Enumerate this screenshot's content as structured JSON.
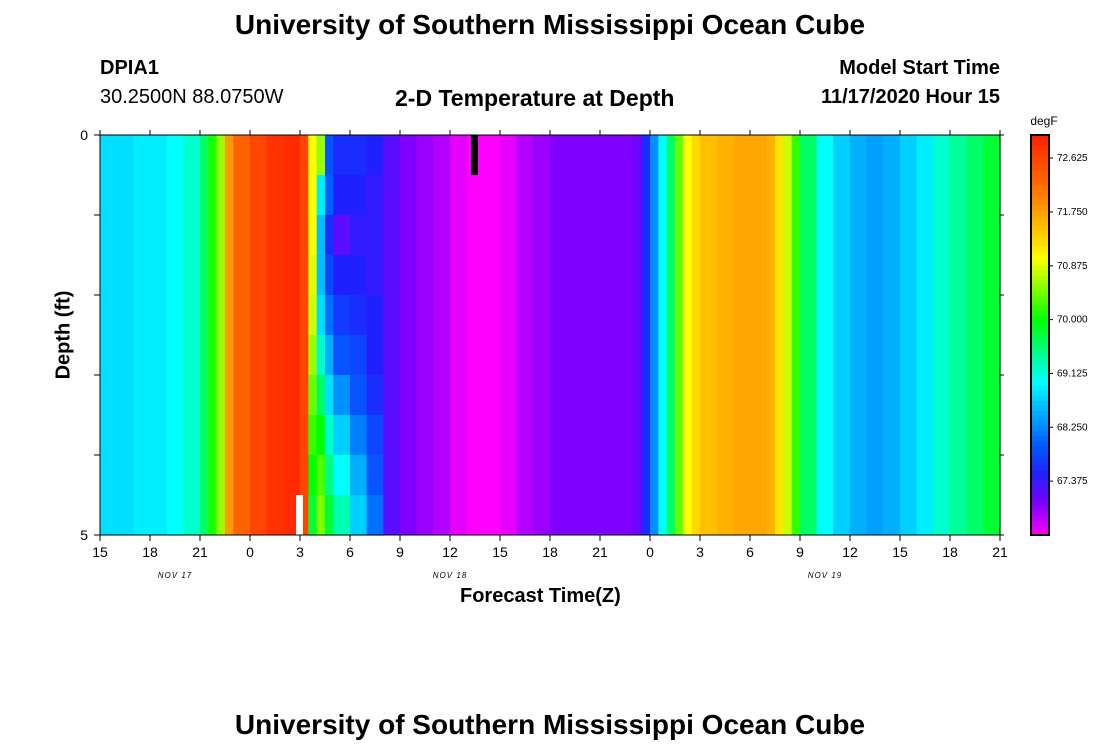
{
  "page": {
    "top_title": "University of Southern Mississippi Ocean Cube",
    "bottom_title": "University of Southern Mississippi Ocean Cube",
    "station_id": "DPIA1",
    "station_coords": "30.2500N 88.0750W",
    "model_start_label": "Model Start Time",
    "model_start_time": "11/17/2020 Hour 15"
  },
  "chart_data": {
    "type": "heatmap",
    "title": "2-D Temperature at Depth",
    "xlabel": "Forecast Time(Z)",
    "ylabel": "Depth (ft)",
    "y_ticks": [
      "0",
      "5"
    ],
    "ylim": [
      0,
      5
    ],
    "x_hours_range": [
      0,
      54
    ],
    "x_ticks": [
      "15",
      "18",
      "21",
      "0",
      "3",
      "6",
      "9",
      "12",
      "15",
      "18",
      "21",
      "0",
      "3",
      "6",
      "9",
      "12",
      "15",
      "18",
      "21"
    ],
    "date_labels": [
      {
        "text": "NOV 17",
        "hour": 4.5
      },
      {
        "text": "NOV 18",
        "hour": 21
      },
      {
        "text": "NOV 19",
        "hour": 43.5
      }
    ],
    "colorbar": {
      "unit": "degF",
      "min": 66.5,
      "max": 73.0,
      "ticks": [
        "72.625",
        "71.750",
        "70.875",
        "70.000",
        "69.125",
        "68.250",
        "67.375"
      ],
      "tick_values": [
        72.625,
        71.75,
        70.875,
        70.0,
        69.125,
        68.25,
        67.375
      ],
      "colors": [
        "#ff00ff",
        "#8000ff",
        "#2020ff",
        "#0060ff",
        "#00b0ff",
        "#00ffff",
        "#00ff80",
        "#00ff00",
        "#80ff00",
        "#ffff00",
        "#ffc000",
        "#ff8000",
        "#ff5000",
        "#ff2000"
      ]
    },
    "depth_levels": [
      0,
      0.5,
      1.0,
      1.5,
      2.0,
      2.5,
      3.0,
      3.5,
      4.0,
      4.5
    ],
    "columns": [
      {
        "hour": 0,
        "t": 68.8
      },
      {
        "hour": 1,
        "t": 68.8
      },
      {
        "hour": 2,
        "t": 68.9
      },
      {
        "hour": 3,
        "t": 68.9
      },
      {
        "hour": 4,
        "t": 69.0
      },
      {
        "hour": 5,
        "t": 69.2
      },
      {
        "hour": 6,
        "t": 69.6
      },
      {
        "hour": 6.5,
        "t": 70.1
      },
      {
        "hour": 7,
        "t": 70.6
      },
      {
        "hour": 7.5,
        "t": 71.8
      },
      {
        "hour": 8,
        "t": 72.3
      },
      {
        "hour": 9,
        "t": 72.6
      },
      {
        "hour": 10,
        "t": 72.8
      },
      {
        "hour": 11,
        "t": 72.9
      },
      {
        "hour": 12,
        "t": 72.6
      },
      {
        "hour": 12.5,
        "t": 71.0,
        "profile": [
          71.0,
          71.0,
          71.0,
          70.9,
          70.8,
          70.6,
          70.4,
          70.2,
          70.0,
          69.8
        ]
      },
      {
        "hour": 13,
        "t": 70.6,
        "profile": [
          70.6,
          68.9,
          68.6,
          68.6,
          68.8,
          69.2,
          69.6,
          70.0,
          70.3,
          70.5
        ]
      },
      {
        "hour": 13.5,
        "t": 67.9,
        "profile": [
          67.9,
          68.0,
          67.6,
          67.8,
          68.1,
          68.5,
          68.8,
          69.2,
          69.5,
          69.8
        ]
      },
      {
        "hour": 14,
        "t": 67.6,
        "profile": [
          67.6,
          67.5,
          67.2,
          67.5,
          67.7,
          67.9,
          68.3,
          68.7,
          69.0,
          69.3
        ]
      },
      {
        "hour": 15,
        "t": 67.6,
        "profile": [
          67.6,
          67.5,
          67.4,
          67.5,
          67.6,
          67.8,
          67.9,
          68.2,
          68.5,
          68.7
        ]
      },
      {
        "hour": 16,
        "t": 67.5,
        "profile": [
          67.5,
          67.4,
          67.4,
          67.4,
          67.5,
          67.5,
          67.6,
          67.8,
          67.9,
          68.1
        ]
      },
      {
        "hour": 17,
        "t": 67.2
      },
      {
        "hour": 18,
        "t": 67.0
      },
      {
        "hour": 19,
        "t": 66.9
      },
      {
        "hour": 20,
        "t": 66.8
      },
      {
        "hour": 21,
        "t": 66.6
      },
      {
        "hour": 22,
        "t": 66.5
      },
      {
        "hour": 23,
        "t": 66.5
      },
      {
        "hour": 24,
        "t": 66.6
      },
      {
        "hour": 25,
        "t": 66.8
      },
      {
        "hour": 26,
        "t": 66.9
      },
      {
        "hour": 27,
        "t": 67.0
      },
      {
        "hour": 28,
        "t": 67.0
      },
      {
        "hour": 29,
        "t": 67.0
      },
      {
        "hour": 30,
        "t": 67.0
      },
      {
        "hour": 31,
        "t": 67.0
      },
      {
        "hour": 32,
        "t": 67.1
      },
      {
        "hour": 32.5,
        "t": 67.6
      },
      {
        "hour": 33,
        "t": 68.3
      },
      {
        "hour": 33.5,
        "t": 69.0
      },
      {
        "hour": 34,
        "t": 69.6
      },
      {
        "hour": 34.5,
        "t": 70.4
      },
      {
        "hour": 35,
        "t": 71.0
      },
      {
        "hour": 35.5,
        "t": 71.3
      },
      {
        "hour": 36,
        "t": 71.5
      },
      {
        "hour": 37,
        "t": 71.6
      },
      {
        "hour": 38,
        "t": 71.7
      },
      {
        "hour": 39,
        "t": 71.7
      },
      {
        "hour": 40,
        "t": 71.6
      },
      {
        "hour": 40,
        "t": 71.6
      },
      {
        "hour": 40.5,
        "t": 71.2
      },
      {
        "hour": 41,
        "t": 70.8
      },
      {
        "hour": 41.5,
        "t": 70.2
      },
      {
        "hour": 42,
        "t": 69.6
      },
      {
        "hour": 43,
        "t": 69.0
      },
      {
        "hour": 44,
        "t": 68.7
      },
      {
        "hour": 45,
        "t": 68.5
      },
      {
        "hour": 46,
        "t": 68.4
      },
      {
        "hour": 47,
        "t": 68.5
      },
      {
        "hour": 48,
        "t": 68.7
      },
      {
        "hour": 49,
        "t": 68.9
      },
      {
        "hour": 50,
        "t": 69.2
      },
      {
        "hour": 51,
        "t": 69.4
      },
      {
        "hour": 52,
        "t": 69.6
      },
      {
        "hour": 53,
        "t": 69.8
      }
    ],
    "markers": [
      {
        "type": "black-bar",
        "hour": 22.5,
        "depth_from": 0,
        "depth_to": 0.5
      },
      {
        "type": "white-bar",
        "hour": 12.0,
        "depth_from": 4.5,
        "depth_to": 5.0
      }
    ]
  }
}
